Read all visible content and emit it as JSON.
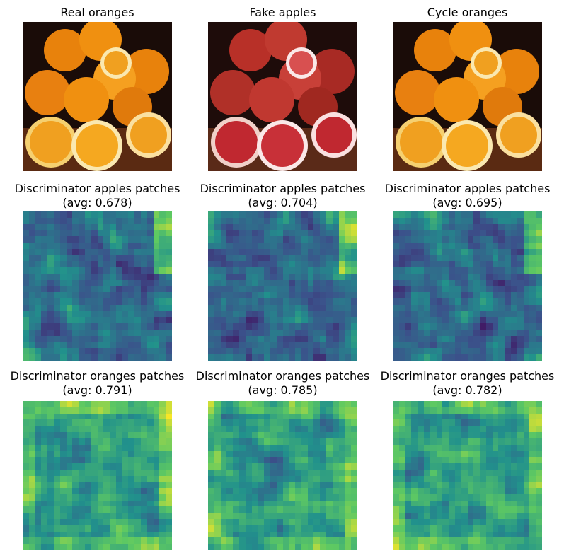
{
  "rows": [
    {
      "panels": [
        {
          "title": "Real oranges",
          "subtitle": ""
        },
        {
          "title": "Fake apples",
          "subtitle": ""
        },
        {
          "title": "Cycle oranges",
          "subtitle": ""
        }
      ]
    },
    {
      "panels": [
        {
          "title": "Discriminator apples patches",
          "subtitle": "(avg: 0.678)"
        },
        {
          "title": "Discriminator apples patches",
          "subtitle": "(avg: 0.704)"
        },
        {
          "title": "Discriminator apples patches",
          "subtitle": "(avg: 0.695)"
        }
      ]
    },
    {
      "panels": [
        {
          "title": "Discriminator oranges patches",
          "subtitle": "(avg: 0.791)"
        },
        {
          "title": "Discriminator oranges patches",
          "subtitle": "(avg: 0.785)"
        },
        {
          "title": "Discriminator oranges patches",
          "subtitle": "(avg: 0.782)"
        }
      ]
    }
  ],
  "colors": {
    "orange": "#f08c10",
    "orange_dark": "#c0600a",
    "red": "#b0302a",
    "red_dark": "#7a1a18",
    "wood": "#5a2a12",
    "background": "#1a0c08",
    "viridis": [
      "#440154",
      "#3b528b",
      "#21918c",
      "#5ec962",
      "#fde725"
    ]
  }
}
